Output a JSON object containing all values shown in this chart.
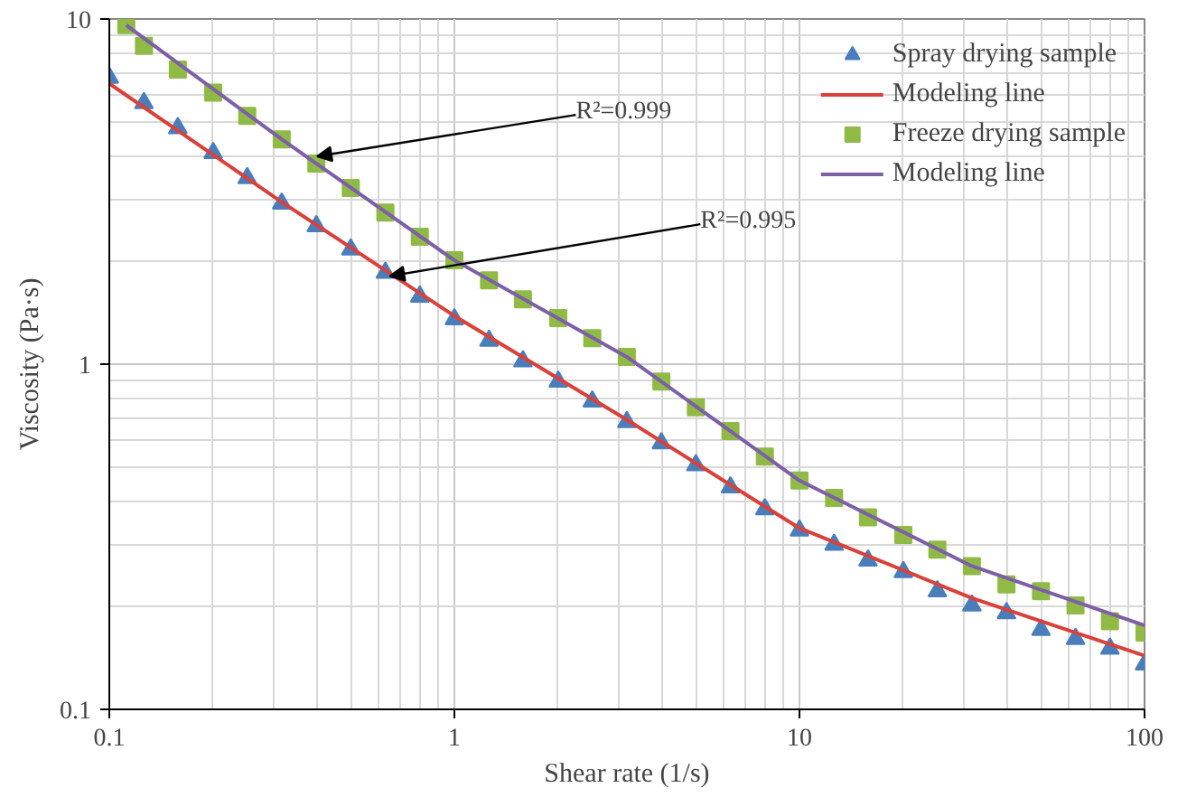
{
  "chart_data": {
    "type": "scatter",
    "xlabel": "Shear rate (1/s)",
    "ylabel": "Viscosity (Pa·s)",
    "log": "xy",
    "xlim": [
      0.1,
      100
    ],
    "ylim": [
      0.1,
      10
    ],
    "xticks": [
      0.1,
      1,
      10,
      100
    ],
    "yticks": [
      0.1,
      1,
      10
    ],
    "grid": true,
    "legend": "top right",
    "series": [
      {
        "name": "Spray drying sample",
        "marker": "triangle",
        "color": "#4a7ebb",
        "x": [
          0.1,
          0.126,
          0.158,
          0.2,
          0.251,
          0.316,
          0.398,
          0.501,
          0.631,
          0.794,
          1,
          1.26,
          1.58,
          2,
          2.51,
          3.16,
          3.98,
          5.01,
          6.31,
          7.94,
          10,
          12.6,
          15.8,
          20,
          25.1,
          31.6,
          39.8,
          50.1,
          63.1,
          79.4,
          100
        ],
        "values": [
          6.76,
          5.71,
          4.83,
          4.09,
          3.46,
          2.92,
          2.51,
          2.15,
          1.84,
          1.57,
          1.35,
          1.17,
          1.02,
          0.89,
          0.78,
          0.68,
          0.59,
          0.51,
          0.44,
          0.38,
          0.33,
          0.3,
          0.27,
          0.25,
          0.22,
          0.2,
          0.19,
          0.17,
          0.16,
          0.15,
          0.135
        ]
      },
      {
        "name": "Modeling line",
        "type": "line",
        "color": "#d9413a",
        "x": [
          0.1,
          0.316,
          1,
          3.16,
          10,
          31.6,
          100
        ],
        "values": [
          6.5,
          2.95,
          1.38,
          0.69,
          0.335,
          0.21,
          0.143
        ]
      },
      {
        "name": "Freeze drying sample",
        "marker": "square",
        "color": "#8fba45",
        "x": [
          0.112,
          0.126,
          0.158,
          0.2,
          0.251,
          0.316,
          0.398,
          0.501,
          0.631,
          0.794,
          1,
          1.26,
          1.58,
          2,
          2.51,
          3.16,
          3.98,
          5.01,
          6.31,
          7.94,
          10,
          12.6,
          15.8,
          20,
          25.1,
          31.6,
          39.8,
          50.1,
          63.1,
          79.4,
          100
        ],
        "values": [
          9.6,
          8.36,
          7.14,
          6.12,
          5.24,
          4.48,
          3.81,
          3.24,
          2.75,
          2.34,
          2.0,
          1.75,
          1.54,
          1.36,
          1.19,
          1.05,
          0.89,
          0.75,
          0.64,
          0.54,
          0.46,
          0.41,
          0.36,
          0.32,
          0.29,
          0.26,
          0.23,
          0.22,
          0.2,
          0.18,
          0.167
        ]
      },
      {
        "name": "Modeling line",
        "type": "line",
        "color": "#7d5fa8",
        "x": [
          0.112,
          0.316,
          1,
          3.16,
          10,
          31.6,
          100
        ],
        "values": [
          9.6,
          4.48,
          2.0,
          1.05,
          0.46,
          0.26,
          0.175
        ]
      }
    ],
    "annotations": [
      {
        "text": "R²=0.999",
        "x": 0.4,
        "y": 4.0
      },
      {
        "text": "R²=0.995",
        "x": 0.65,
        "y": 1.8
      }
    ]
  }
}
